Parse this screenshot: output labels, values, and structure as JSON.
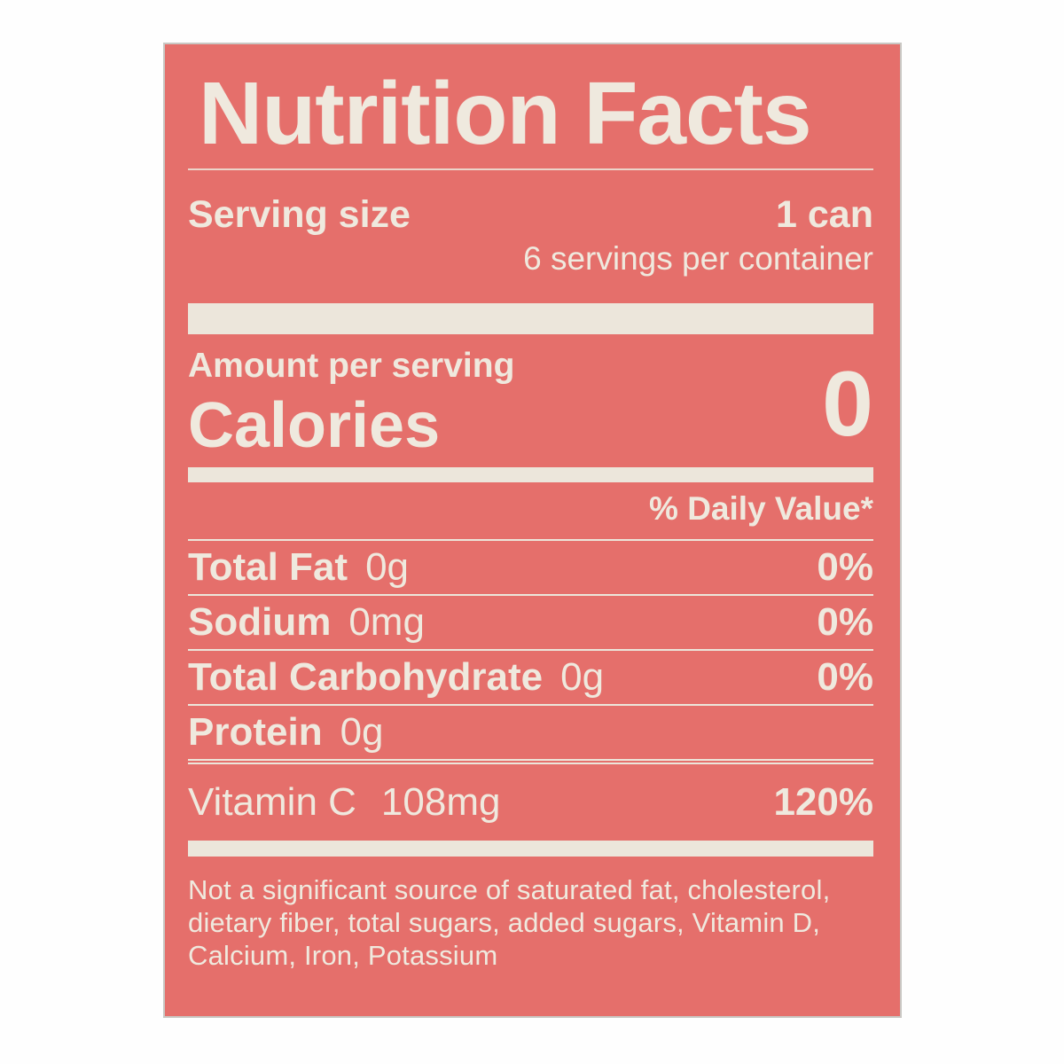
{
  "colors": {
    "label_background": "#e56f6b",
    "label_text": "#efe9de",
    "page_background": "#fefefe"
  },
  "label": {
    "title": "Nutrition Facts",
    "serving": {
      "label": "Serving size",
      "value": "1 can",
      "per_container": "6 servings per container"
    },
    "calories": {
      "amount_per_serving": "Amount per serving",
      "label": "Calories",
      "value": "0"
    },
    "daily_value_header": "% Daily Value*",
    "nutrients": [
      {
        "name": "Total Fat",
        "amount": "0g",
        "dv": "0%"
      },
      {
        "name": "Sodium",
        "amount": "0mg",
        "dv": "0%"
      },
      {
        "name": "Total Carbohydrate",
        "amount": "0g",
        "dv": "0%"
      },
      {
        "name": "Protein",
        "amount": "0g",
        "dv": ""
      },
      {
        "name": "Vitamin C",
        "amount": "108mg",
        "dv": "120%"
      }
    ],
    "footnote_lines": [
      "Not a significant source of saturated fat, cholesterol,",
      "dietary fiber, total sugars, added sugars, Vitamin D,",
      "Calcium, Iron, Potassium"
    ]
  }
}
